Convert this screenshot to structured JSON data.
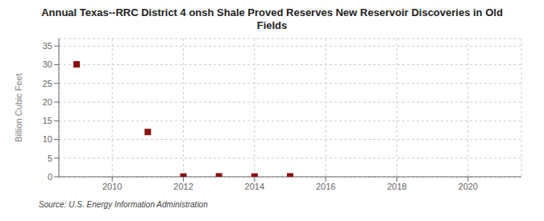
{
  "chart_data": {
    "type": "scatter",
    "title": "Annual Texas--RRC District 4 onsh Shale Proved Reserves New Reservoir Discoveries in Old\nFields",
    "ylabel": "Billion Cubic Feet",
    "source": "Source: U.S. Energy Information Administration",
    "x": [
      2009,
      2011,
      2012,
      2013,
      2014,
      2015
    ],
    "values": [
      30.1,
      12.0,
      0.08,
      0.12,
      0.08,
      0.12
    ],
    "color": "#8b1010",
    "marker": "square",
    "xlim": [
      2008.5,
      2021.5
    ],
    "ylim": [
      0,
      37
    ],
    "xticks": [
      2010,
      2012,
      2014,
      2016,
      2018,
      2020
    ],
    "yticks": [
      0,
      5,
      10,
      15,
      20,
      25,
      30,
      35
    ],
    "grid": true
  }
}
